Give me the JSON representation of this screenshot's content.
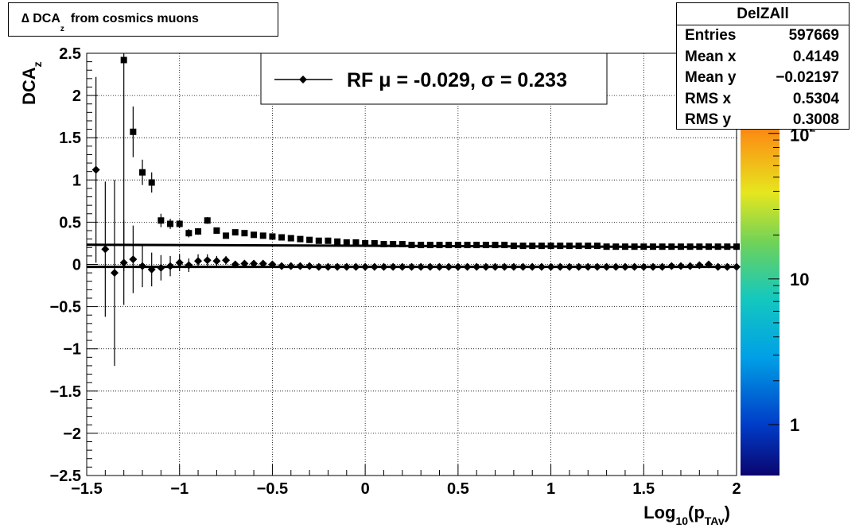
{
  "title": {
    "prefix": "∆ DCA",
    "sub": "z",
    "suffix": "from cosmics muons"
  },
  "stats": {
    "name": "DelZAll",
    "rows": [
      {
        "label": "Entries",
        "value": "597669"
      },
      {
        "label": "Mean x",
        "value": "0.4149"
      },
      {
        "label": "Mean y",
        "value": "−0.02197"
      },
      {
        "label": "RMS x",
        "value": "0.5304"
      },
      {
        "label": "RMS y",
        "value": "0.3008"
      }
    ]
  },
  "legend": {
    "label": "RF μ = -0.029, σ =   0.233"
  },
  "colors": {
    "profile": "#000000",
    "fit_line": "#000000"
  },
  "chart_data": {
    "type": "heatmap",
    "xlabel": "Log10(pTAv)",
    "ylabel": "DCAz",
    "xlim": [
      -1.5,
      2
    ],
    "ylim": [
      -2.5,
      2.5
    ],
    "x_ticks": [
      "−1.5",
      "−1",
      "−0.5",
      "0",
      "0.5",
      "1",
      "1.5",
      "2"
    ],
    "y_ticks": [
      "2.5",
      "2",
      "1.5",
      "1",
      "0.5",
      "0",
      "−0.5",
      "−1",
      "−1.5",
      "−2",
      "−2.5"
    ],
    "z_scale": "log",
    "z_ticks": [
      "1",
      "10",
      "10²"
    ],
    "grid": true,
    "series": [
      {
        "name": "RF",
        "marker": "diamond",
        "x": [
          -1.45,
          -1.4,
          -1.35,
          -1.3,
          -1.25,
          -1.2,
          -1.15,
          -1.1,
          -1.05,
          -1.0,
          -0.95,
          -0.9,
          -0.85,
          -0.8,
          -0.75,
          -0.7,
          -0.65,
          -0.6,
          -0.55,
          -0.5,
          -0.45,
          -0.4,
          -0.35,
          -0.3,
          -0.25,
          -0.2,
          -0.15,
          -0.1,
          -0.05,
          0.0,
          0.05,
          0.1,
          0.15,
          0.2,
          0.25,
          0.3,
          0.35,
          0.4,
          0.45,
          0.5,
          0.55,
          0.6,
          0.65,
          0.7,
          0.75,
          0.8,
          0.85,
          0.9,
          0.95,
          1.0,
          1.05,
          1.1,
          1.15,
          1.2,
          1.25,
          1.3,
          1.35,
          1.4,
          1.45,
          1.5,
          1.55,
          1.6,
          1.65,
          1.7,
          1.75,
          1.8,
          1.85,
          1.9,
          1.95,
          2.0
        ],
        "y": [
          1.12,
          0.18,
          -0.1,
          0.02,
          0.06,
          -0.02,
          -0.06,
          -0.04,
          -0.02,
          0.02,
          -0.01,
          0.04,
          0.05,
          0.04,
          0.05,
          0.0,
          0.01,
          0.01,
          0.01,
          0.0,
          -0.02,
          -0.02,
          -0.02,
          -0.02,
          -0.03,
          -0.03,
          -0.03,
          -0.03,
          -0.03,
          -0.03,
          -0.03,
          -0.03,
          -0.03,
          -0.03,
          -0.03,
          -0.03,
          -0.03,
          -0.03,
          -0.03,
          -0.03,
          -0.03,
          -0.03,
          -0.03,
          -0.03,
          -0.03,
          -0.03,
          -0.03,
          -0.03,
          -0.03,
          -0.03,
          -0.03,
          -0.03,
          -0.03,
          -0.03,
          -0.03,
          -0.03,
          -0.03,
          -0.03,
          -0.03,
          -0.03,
          -0.03,
          -0.03,
          -0.02,
          -0.02,
          -0.02,
          -0.01,
          0.0,
          -0.03,
          -0.03,
          -0.03
        ],
        "err": [
          1.1,
          0.8,
          1.1,
          0.5,
          0.4,
          0.25,
          0.2,
          0.15,
          0.12,
          0.1,
          0.08,
          0.08,
          0.07,
          0.06,
          0.05,
          0.04,
          0.03,
          0.03,
          0.02,
          0.02,
          0.02,
          0.02,
          0.02,
          0.02,
          0.02,
          0.02,
          0.02,
          0.02,
          0.02,
          0.02,
          0.02,
          0.02,
          0.02,
          0.02,
          0.02,
          0.02,
          0.02,
          0.02,
          0.02,
          0.02,
          0.02,
          0.02,
          0.02,
          0.02,
          0.02,
          0.02,
          0.02,
          0.02,
          0.02,
          0.02,
          0.02,
          0.02,
          0.02,
          0.02,
          0.02,
          0.02,
          0.02,
          0.02,
          0.02,
          0.02,
          0.02,
          0.02,
          0.02,
          0.02,
          0.02,
          0.02,
          0.02,
          0.02,
          0.02,
          0.02
        ]
      },
      {
        "name": "",
        "marker": "square",
        "x": [
          -1.3,
          -1.25,
          -1.2,
          -1.15,
          -1.1,
          -1.05,
          -1.0,
          -0.95,
          -0.9,
          -0.85,
          -0.8,
          -0.75,
          -0.7,
          -0.65,
          -0.6,
          -0.55,
          -0.5,
          -0.45,
          -0.4,
          -0.35,
          -0.3,
          -0.25,
          -0.2,
          -0.15,
          -0.1,
          -0.05,
          0.0,
          0.05,
          0.1,
          0.15,
          0.2,
          0.25,
          0.3,
          0.35,
          0.4,
          0.45,
          0.5,
          0.55,
          0.6,
          0.65,
          0.7,
          0.75,
          0.8,
          0.85,
          0.9,
          0.95,
          1.0,
          1.05,
          1.1,
          1.15,
          1.2,
          1.25,
          1.3,
          1.35,
          1.4,
          1.45,
          1.5,
          1.55,
          1.6,
          1.65,
          1.7,
          1.75,
          1.8,
          1.85,
          1.9,
          1.95,
          2.0
        ],
        "y": [
          2.42,
          1.57,
          1.09,
          0.97,
          0.52,
          0.48,
          0.48,
          0.37,
          0.39,
          0.52,
          0.4,
          0.34,
          0.38,
          0.37,
          0.35,
          0.34,
          0.33,
          0.32,
          0.31,
          0.3,
          0.29,
          0.28,
          0.28,
          0.27,
          0.26,
          0.26,
          0.25,
          0.25,
          0.24,
          0.24,
          0.24,
          0.23,
          0.23,
          0.23,
          0.23,
          0.23,
          0.23,
          0.23,
          0.23,
          0.23,
          0.23,
          0.23,
          0.22,
          0.22,
          0.22,
          0.22,
          0.22,
          0.22,
          0.22,
          0.22,
          0.22,
          0.22,
          0.21,
          0.21,
          0.21,
          0.21,
          0.21,
          0.21,
          0.21,
          0.21,
          0.21,
          0.21,
          0.21,
          0.21,
          0.21,
          0.21,
          0.21
        ],
        "err": [
          2.5,
          0.3,
          0.15,
          0.12,
          0.08,
          0.06,
          0.05,
          0.05,
          0.04,
          0.04,
          0.03,
          0.03,
          0.02,
          0.02,
          0.02,
          0.02,
          0.02,
          0.02,
          0.01,
          0.01,
          0.01,
          0.01,
          0.01,
          0.01,
          0.01,
          0.01,
          0.01,
          0.01,
          0.01,
          0.01,
          0.01,
          0.01,
          0.01,
          0.01,
          0.01,
          0.01,
          0.01,
          0.01,
          0.01,
          0.01,
          0.01,
          0.01,
          0.01,
          0.01,
          0.01,
          0.01,
          0.01,
          0.01,
          0.01,
          0.01,
          0.01,
          0.01,
          0.01,
          0.01,
          0.01,
          0.01,
          0.01,
          0.01,
          0.01,
          0.01,
          0.01,
          0.01,
          0.01,
          0.01,
          0.01,
          0.01,
          0.01
        ]
      }
    ],
    "fit_lines": [
      {
        "x": [
          -1.5,
          2.0
        ],
        "y": [
          -0.029,
          -0.029
        ]
      },
      {
        "x": [
          -1.5,
          2.0
        ],
        "y": [
          0.233,
          0.204
        ]
      }
    ]
  }
}
